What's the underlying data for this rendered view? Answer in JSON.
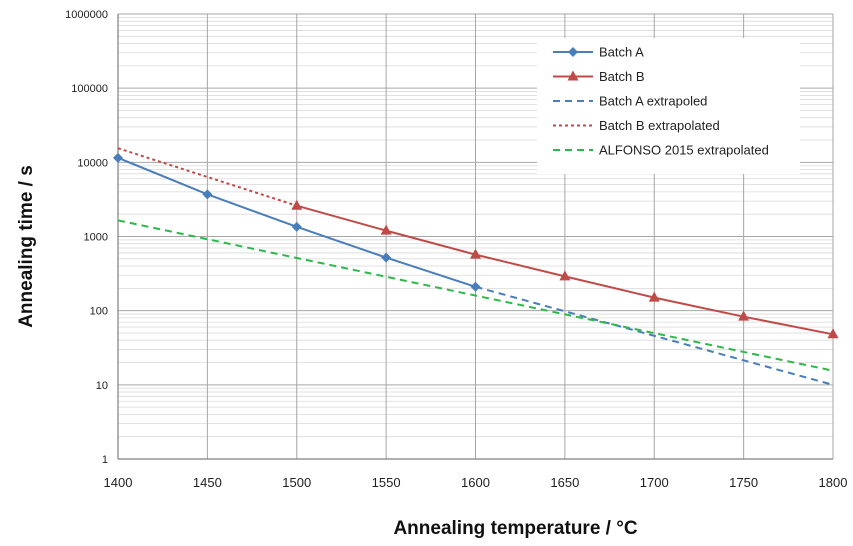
{
  "chart_data": {
    "type": "line",
    "title": "",
    "xlabel": "Annealing temperature / °C",
    "ylabel": "Annealing time / s",
    "xlim": [
      1400,
      1800
    ],
    "ylim": [
      1,
      1000000
    ],
    "yscale": "log",
    "grid": true,
    "legend_position": "top-right",
    "xticks": [
      1400,
      1450,
      1500,
      1550,
      1600,
      1650,
      1700,
      1750,
      1800
    ],
    "xtick_labels": [
      "1400",
      "1450",
      "1500",
      "1550",
      "1600",
      "1650",
      "1700",
      "1750",
      "1800"
    ],
    "yticks": [
      1,
      10,
      100,
      1000,
      10000,
      100000,
      1000000
    ],
    "ytick_labels": [
      "1",
      "10",
      "100",
      "1000",
      "10000",
      "100000",
      "1000000"
    ],
    "series": [
      {
        "name": "Batch A",
        "color": "#4A7EBB",
        "line": "solid",
        "marker": "diamond",
        "x": [
          1400,
          1450,
          1500,
          1550,
          1600
        ],
        "y": [
          11500,
          3700,
          1350,
          520,
          210
        ]
      },
      {
        "name": "Batch B",
        "color": "#BE4B48",
        "line": "solid",
        "marker": "triangle",
        "x": [
          1500,
          1550,
          1600,
          1650,
          1700,
          1750,
          1800
        ],
        "y": [
          2600,
          1200,
          570,
          290,
          150,
          83,
          48
        ]
      },
      {
        "name": "Batch A extrapoled",
        "color": "#4A7EBB",
        "line": "dashed",
        "marker": "none",
        "x": [
          1600,
          1800
        ],
        "y": [
          210,
          10
        ]
      },
      {
        "name": "Batch B extrapolated",
        "color": "#BE4B48",
        "line": "dotted",
        "marker": "none",
        "x": [
          1400,
          1500
        ],
        "y": [
          15500,
          2600
        ]
      },
      {
        "name": "ALFONSO 2015 extrapolated",
        "color": "#2DB84B",
        "line": "dashed",
        "marker": "none",
        "x": [
          1400,
          1800
        ],
        "y": [
          1650,
          15.5
        ]
      }
    ]
  }
}
